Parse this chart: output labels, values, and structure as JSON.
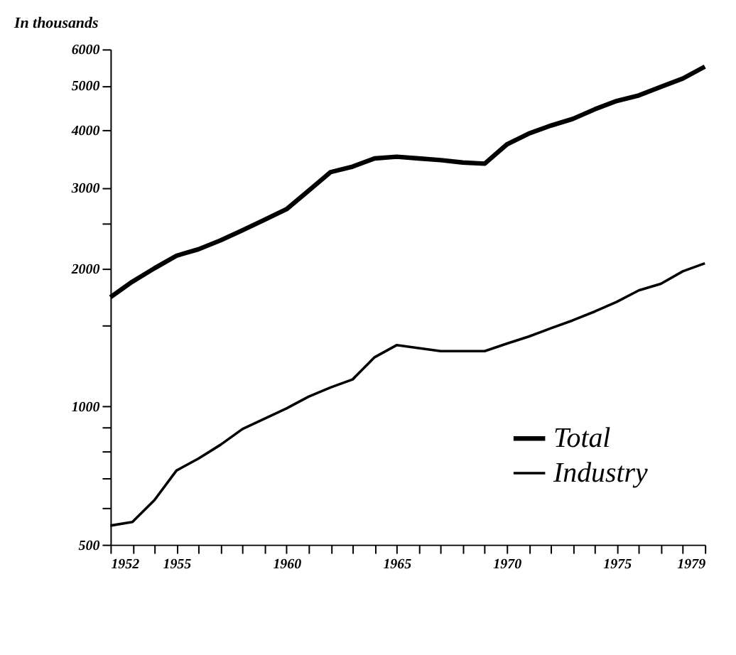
{
  "chart_data": {
    "type": "line",
    "ylabel": "In thousands",
    "log": "y",
    "grid": false,
    "legend": "bottom right",
    "marker": "none",
    "line_style": "solid",
    "x": [
      1952,
      1953,
      1954,
      1955,
      1956,
      1957,
      1958,
      1959,
      1960,
      1961,
      1962,
      1963,
      1964,
      1965,
      1966,
      1967,
      1968,
      1969,
      1970,
      1971,
      1972,
      1973,
      1974,
      1975,
      1976,
      1977,
      1978,
      1979
    ],
    "series": [
      {
        "name": "Total",
        "color": "#000000",
        "values": [
          1730,
          1870,
          2000,
          2130,
          2200,
          2300,
          2420,
          2550,
          2690,
          2950,
          3240,
          3330,
          3470,
          3500,
          3470,
          3440,
          3400,
          3380,
          3720,
          3930,
          4090,
          4230,
          4440,
          4630,
          4760,
          4970,
          5180,
          5500
        ]
      },
      {
        "name": "Industry",
        "color": "#000000",
        "values": [
          550,
          560,
          625,
          725,
          770,
          825,
          893,
          940,
          990,
          1050,
          1100,
          1145,
          1280,
          1360,
          1340,
          1320,
          1320,
          1320,
          1370,
          1420,
          1480,
          1540,
          1610,
          1690,
          1790,
          1850,
          1970,
          2050
        ]
      }
    ],
    "xlim": [
      1952,
      1979
    ],
    "xticks": [
      1952,
      {
        "value": 1953,
        "label": null
      },
      {
        "value": 1954,
        "label": null
      },
      1955,
      {
        "value": 1956,
        "label": null
      },
      {
        "value": 1957,
        "label": null
      },
      {
        "value": 1958,
        "label": null
      },
      {
        "value": 1959,
        "label": null
      },
      1960,
      {
        "value": 1961,
        "label": null
      },
      {
        "value": 1962,
        "label": null
      },
      {
        "value": 1963,
        "label": null
      },
      {
        "value": 1964,
        "label": null
      },
      1965,
      {
        "value": 1966,
        "label": null
      },
      {
        "value": 1967,
        "label": null
      },
      {
        "value": 1968,
        "label": null
      },
      {
        "value": 1969,
        "label": null
      },
      1970,
      {
        "value": 1971,
        "label": null
      },
      {
        "value": 1972,
        "label": null
      },
      {
        "value": 1973,
        "label": null
      },
      {
        "value": 1974,
        "label": null
      },
      1975,
      {
        "value": 1976,
        "label": null
      },
      {
        "value": 1977,
        "label": null
      },
      {
        "value": 1978,
        "label": null
      },
      1979
    ],
    "ylim": [
      500,
      6000
    ],
    "yticks": [
      500,
      {
        "value": 600,
        "label": null
      },
      {
        "value": 700,
        "label": null
      },
      {
        "value": 800,
        "label": null
      },
      {
        "value": 900,
        "label": null
      },
      1000,
      {
        "value": 1500,
        "label": null
      },
      2000,
      {
        "value": 2500,
        "label": null
      },
      3000,
      4000,
      5000,
      6000
    ]
  }
}
